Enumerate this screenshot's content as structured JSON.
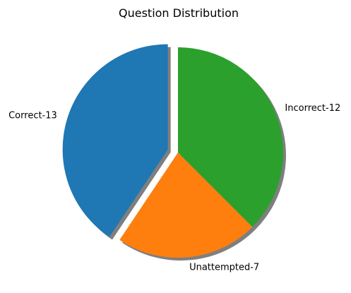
{
  "chart_data": {
    "type": "pie",
    "title": "Question Distribution",
    "slices": [
      {
        "label": "Correct-13",
        "value": 13,
        "color": "#1f77b4",
        "exploded": true
      },
      {
        "label": "Unattempted-7",
        "value": 7,
        "color": "#ff7f0e",
        "exploded": false
      },
      {
        "label": "Incorrect-12",
        "value": 12,
        "color": "#2ca02c",
        "exploded": false
      }
    ],
    "start_angle_deg": 90,
    "direction": "counterclockwise",
    "shadow": true,
    "legend": "none"
  }
}
